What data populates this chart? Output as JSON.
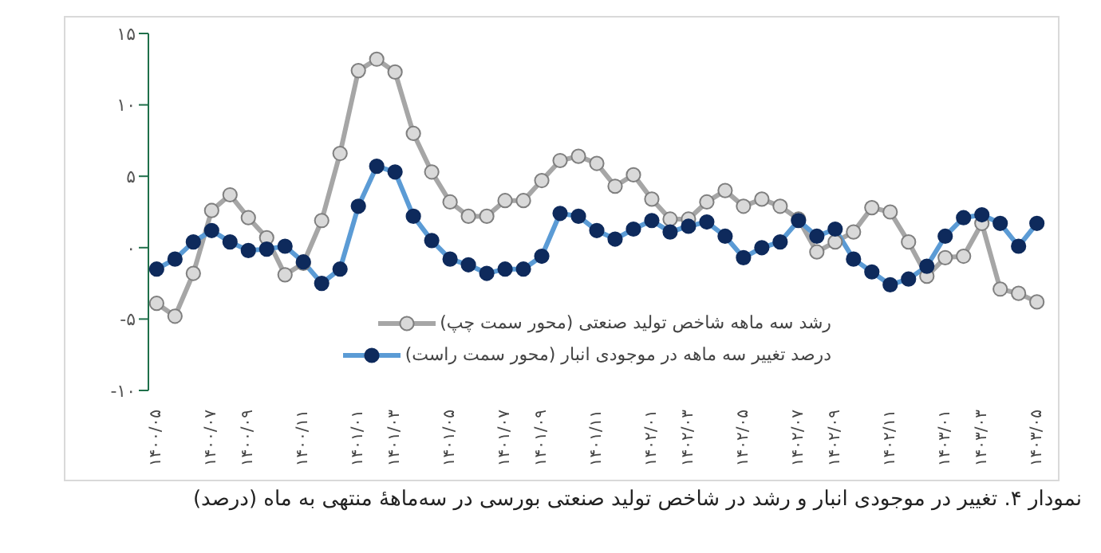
{
  "chart_data": {
    "type": "line",
    "title": "نمودار ۴. تغییر در موجودی انبار و رشد در شاخص تولید صنعتی بورسی در سه‌ماههٔ منتهی به ماه (درصد)",
    "categories": [
      "۱۴۰۰/۰۵",
      null,
      null,
      "۱۴۰۰/۰۷",
      null,
      "۱۴۰۰/۰۹",
      null,
      null,
      "۱۴۰۰/۱۱",
      null,
      null,
      "۱۴۰۱/۰۱",
      null,
      "۱۴۰۱/۰۳",
      null,
      null,
      "۱۴۰۱/۰۵",
      null,
      null,
      "۱۴۰۱/۰۷",
      null,
      "۱۴۰۱/۰۹",
      null,
      null,
      "۱۴۰۱/۱۱",
      null,
      null,
      "۱۴۰۲/۰۱",
      null,
      "۱۴۰۲/۰۳",
      null,
      null,
      "۱۴۰۲/۰۵",
      null,
      null,
      "۱۴۰۲/۰۷",
      null,
      "۱۴۰۲/۰۹",
      null,
      null,
      "۱۴۰۲/۱۱",
      null,
      null,
      "۱۴۰۳/۰۱",
      null,
      "۱۴۰۳/۰۳",
      null,
      null,
      "۱۴۰۳/۰۵"
    ],
    "series": [
      {
        "name": "رشد سه ماهه شاخص تولید صنعتی (محور سمت چپ)",
        "color": "#a6a6a6",
        "values": [
          -3.9,
          -4.8,
          -1.8,
          2.6,
          3.7,
          2.1,
          0.7,
          -1.9,
          -1.1,
          1.9,
          6.6,
          12.4,
          13.2,
          12.3,
          8.0,
          5.3,
          3.2,
          2.2,
          2.2,
          3.3,
          3.3,
          4.7,
          6.1,
          6.4,
          5.9,
          4.3,
          5.1,
          3.4,
          2.0,
          2.0,
          3.2,
          4.0,
          2.9,
          3.4,
          2.9,
          2.0,
          -0.3,
          0.4,
          1.1,
          2.8,
          2.5,
          0.4,
          -2.0,
          -0.7,
          -0.6,
          1.7,
          -2.9,
          -3.2,
          -3.8
        ]
      },
      {
        "name": "درصد تغییر سه ماهه در موجودی انبار (محور سمت راست)",
        "color": "#5b9bd5",
        "values": [
          -1.5,
          -0.8,
          0.4,
          1.2,
          0.4,
          -0.2,
          -0.1,
          0.1,
          -1.0,
          -2.5,
          -1.5,
          2.9,
          5.7,
          5.3,
          2.2,
          0.5,
          -0.8,
          -1.2,
          -1.8,
          -1.5,
          -1.5,
          -0.6,
          2.4,
          2.2,
          1.2,
          0.6,
          1.3,
          1.9,
          1.1,
          1.5,
          1.8,
          0.8,
          -0.7,
          0.0,
          0.4,
          1.9,
          0.8,
          1.3,
          -0.8,
          -1.7,
          -2.6,
          -2.2,
          -1.3,
          0.8,
          2.1,
          2.3,
          1.7,
          0.1,
          1.7
        ]
      }
    ],
    "ylim": [
      -10,
      15
    ],
    "yticks": [
      {
        "value": -10,
        "label": "-۱۰"
      },
      {
        "value": -5,
        "label": "-۵"
      },
      {
        "value": 0,
        "label": "۰"
      },
      {
        "value": 5,
        "label": "۵"
      },
      {
        "value": 10,
        "label": "۱۰"
      },
      {
        "value": 15,
        "label": "۱۵"
      }
    ],
    "grid": false,
    "legend": "bottom",
    "marker": "circle",
    "line_style": "solid"
  }
}
